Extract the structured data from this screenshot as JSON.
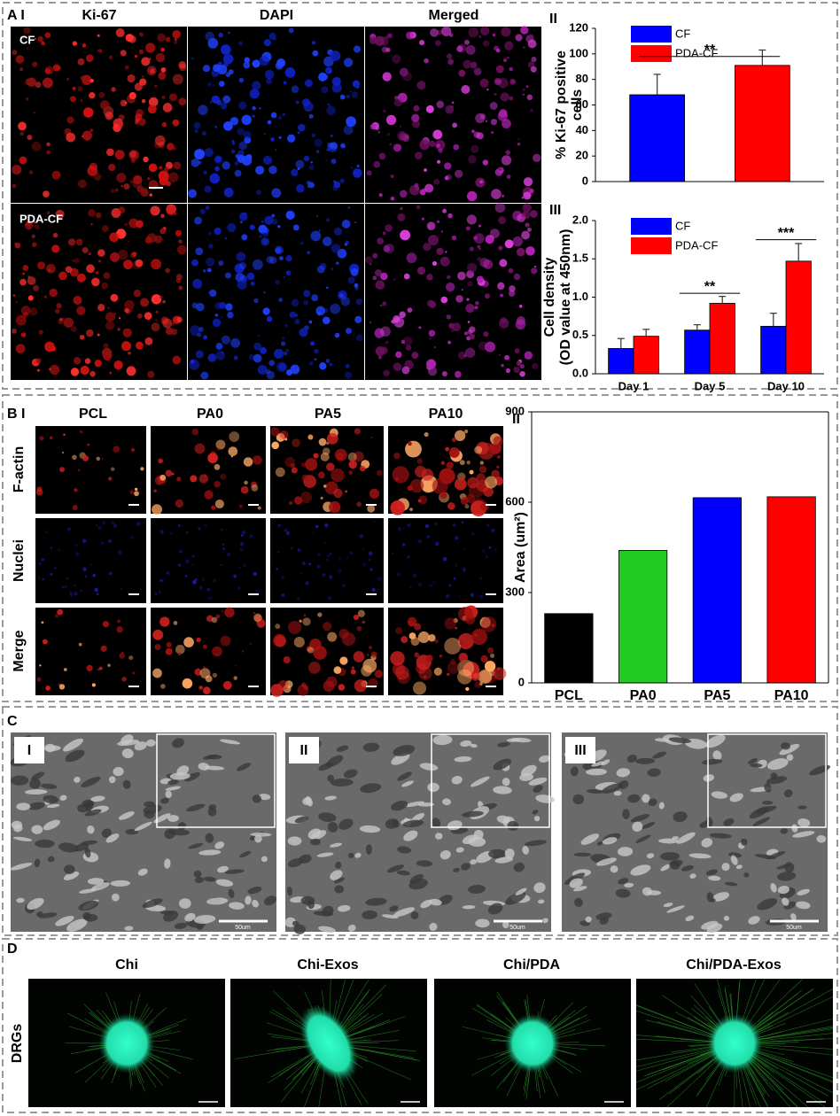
{
  "figure": {
    "a": {
      "label": "A I",
      "columns": [
        "Ki-67",
        "DAPI",
        "Merged"
      ],
      "rows": [
        "CF",
        "PDA-CF"
      ],
      "chart_labels": [
        "II",
        "III"
      ]
    },
    "b": {
      "label": "B I",
      "columns": [
        "PCL",
        "PA0",
        "PA5",
        "PA10"
      ],
      "rows": [
        "F-actin",
        "Nuclei",
        "Merge"
      ],
      "chart_label": "II"
    },
    "c": {
      "label": "C",
      "images": [
        "I",
        "II",
        "III"
      ],
      "scale": "50um"
    },
    "d": {
      "label": "D",
      "columns": [
        "Chi",
        "Chi-Exos",
        "Chi/PDA",
        "Chi/PDA-Exos"
      ],
      "row": "DRGs"
    }
  },
  "chart_data": [
    {
      "type": "bar",
      "ylabel": [
        "% Ki-67 positive",
        "cells"
      ],
      "ylim": [
        0,
        120
      ],
      "yticks": [
        0,
        20,
        40,
        60,
        80,
        100,
        120
      ],
      "series": [
        {
          "name": "CF",
          "color": "#0000ff",
          "values": [
            68
          ],
          "errors": [
            16
          ]
        },
        {
          "name": "PDA-CF",
          "color": "#ff0000",
          "values": [
            91
          ],
          "errors": [
            12
          ]
        }
      ],
      "annotations": [
        "**"
      ]
    },
    {
      "type": "bar",
      "ylabel": [
        "Cell density",
        "(OD value at 450nm)"
      ],
      "categories": [
        "Day 1",
        "Day 5",
        "Day 10"
      ],
      "ylim": [
        0,
        2
      ],
      "yticks": [
        {
          "value": 0,
          "label": "0.0"
        },
        {
          "value": 0.5,
          "label": "0.5"
        },
        {
          "value": 1,
          "label": "1.0"
        },
        {
          "value": 1.5,
          "label": "1.5"
        },
        {
          "value": 2,
          "label": "2.0"
        }
      ],
      "series": [
        {
          "name": "CF",
          "color": "#0000ff",
          "values": [
            0.33,
            0.57,
            0.62
          ],
          "errors": [
            0.13,
            0.07,
            0.17
          ]
        },
        {
          "name": "PDA-CF",
          "color": "#ff0000",
          "values": [
            0.49,
            0.92,
            1.47
          ],
          "errors": [
            0.09,
            0.09,
            0.23
          ]
        }
      ],
      "annotations": [
        "**",
        "***"
      ]
    },
    {
      "type": "bar",
      "ylabel": [
        "Area (um²)"
      ],
      "categories": [
        "PCL",
        "PA0",
        "PA5",
        "PA10"
      ],
      "ylim": [
        0,
        900
      ],
      "yticks": [
        0,
        300,
        600,
        900
      ],
      "values": [
        230,
        440,
        615,
        618
      ],
      "colors": [
        "#000000",
        "#22cc22",
        "#0000ff",
        "#ff0000"
      ]
    }
  ]
}
